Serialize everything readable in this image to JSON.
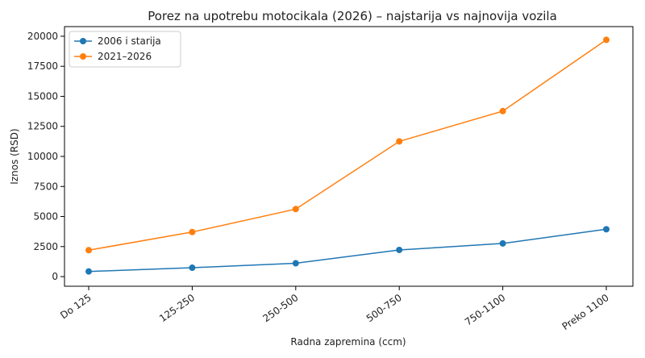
{
  "chart_data": {
    "type": "line",
    "title": "Porez na upotrebu motocikala (2026) – najstarija vs najnovija vozila",
    "xlabel": "Radna zapremina (ccm)",
    "ylabel": "Iznos (RSD)",
    "categories": [
      "Do 125",
      "125-250",
      "250-500",
      "500-750",
      "750-1100",
      "Preko 1100"
    ],
    "yticks": [
      "0",
      "2500",
      "5000",
      "7500",
      "10000",
      "12500",
      "15000",
      "17500",
      "20000"
    ],
    "ylim": [
      -800,
      20800
    ],
    "grid": false,
    "legend_position": "top-left",
    "series": [
      {
        "name": "2006 i starija",
        "color": "#1f77b4",
        "values": [
          430,
          740,
          1110,
          2220,
          2760,
          3940
        ]
      },
      {
        "name": "2021–2026",
        "color": "#ff7f0e",
        "values": [
          2200,
          3710,
          5620,
          11250,
          13770,
          19700
        ]
      }
    ]
  }
}
